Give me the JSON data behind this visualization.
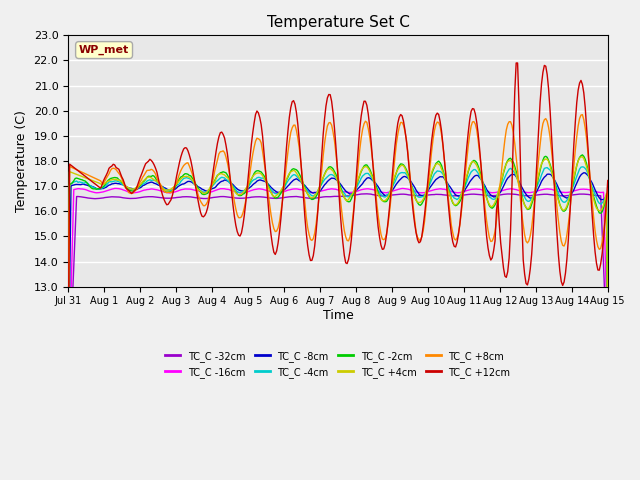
{
  "title": "Temperature Set C",
  "xlabel": "Time",
  "ylabel": "Temperature (C)",
  "ylim": [
    13.0,
    23.0
  ],
  "yticks": [
    13.0,
    14.0,
    15.0,
    16.0,
    17.0,
    18.0,
    19.0,
    20.0,
    21.0,
    22.0,
    23.0
  ],
  "xtick_labels": [
    "Jul 31",
    "Aug 1",
    "Aug 2",
    "Aug 3",
    "Aug 4",
    "Aug 5",
    "Aug 6",
    "Aug 7",
    "Aug 8",
    "Aug 9",
    "Aug 10",
    "Aug 11",
    "Aug 12",
    "Aug 13",
    "Aug 14",
    "Aug 15"
  ],
  "wp_met_label": "WP_met",
  "series": [
    {
      "label": "TC_C -32cm",
      "color": "#9900cc"
    },
    {
      "label": "TC_C -16cm",
      "color": "#ff00ff"
    },
    {
      "label": "TC_C -8cm",
      "color": "#0000cc"
    },
    {
      "label": "TC_C -4cm",
      "color": "#00cccc"
    },
    {
      "label": "TC_C -2cm",
      "color": "#00cc00"
    },
    {
      "label": "TC_C +4cm",
      "color": "#cccc00"
    },
    {
      "label": "TC_C +8cm",
      "color": "#ff8800"
    },
    {
      "label": "TC_C +12cm",
      "color": "#cc0000"
    }
  ],
  "bg_color": "#e8e8e8",
  "grid_color": "#ffffff"
}
